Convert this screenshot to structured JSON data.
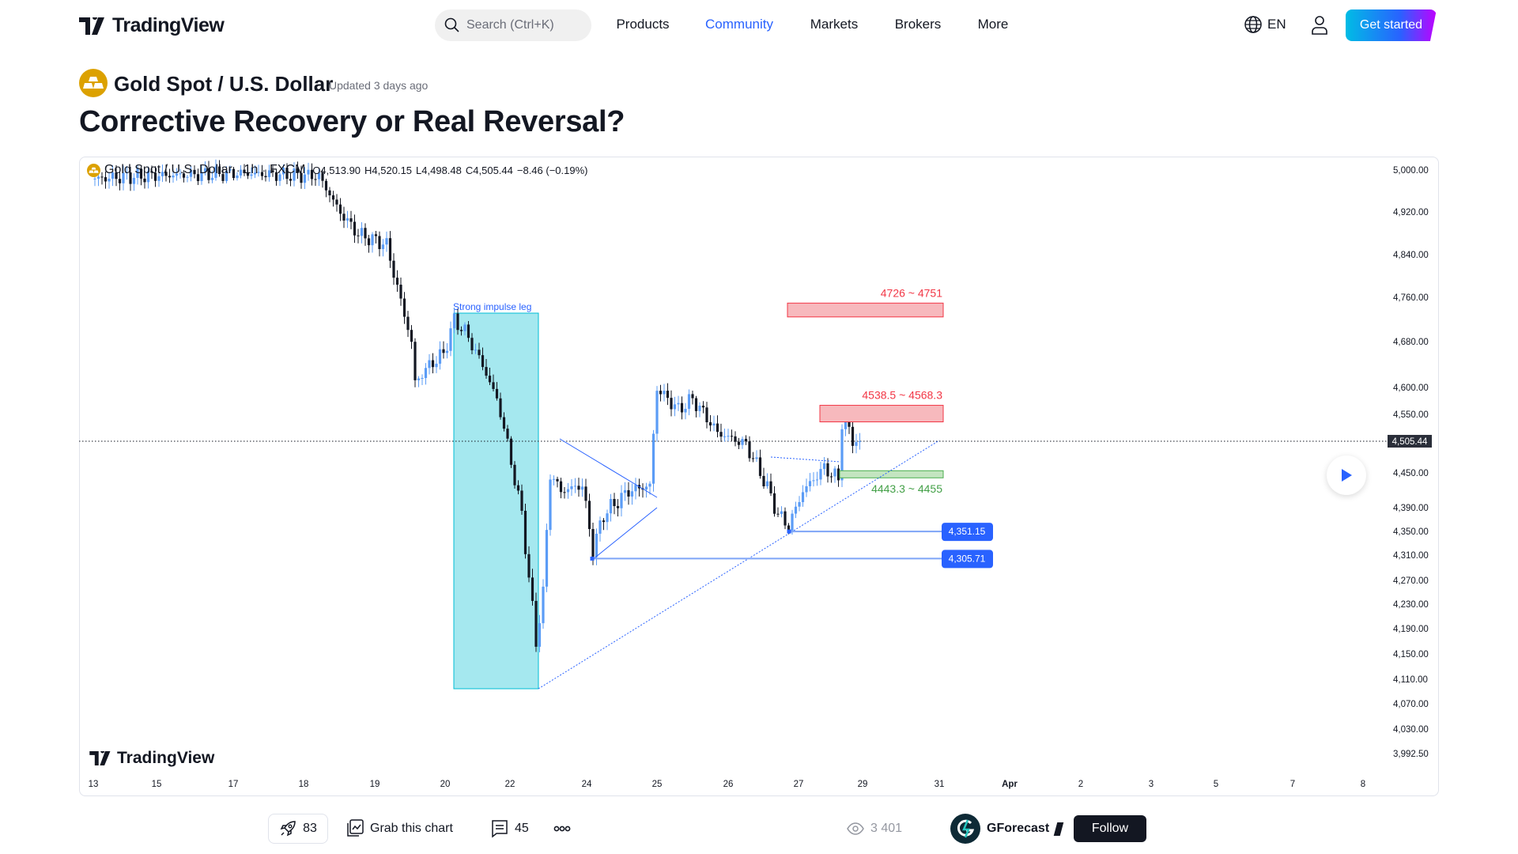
{
  "header": {
    "brand": "TradingView",
    "search_placeholder": "Search (Ctrl+K)",
    "nav": [
      {
        "label": "Products"
      },
      {
        "label": "Community",
        "active": true
      },
      {
        "label": "Markets"
      },
      {
        "label": "Brokers"
      },
      {
        "label": "More"
      }
    ],
    "language": "EN",
    "get_started": "Get started",
    "accent": "#2962ff"
  },
  "idea": {
    "symbol": "Gold Spot / U.S. Dollar",
    "updated": "Updated 3 days ago",
    "title": "Corrective Recovery or Real Reversal?"
  },
  "chart_data": {
    "type": "candlestick",
    "legend": {
      "symbol": "Gold Spot / U.S. Dollar",
      "interval": "1h",
      "exchange": "FXCM",
      "sep": "·",
      "open": "O4,513.90",
      "high": "H4,520.15",
      "low": "L4,498.48",
      "close": "C4,505.44",
      "change": "−8.46 (−0.19%)"
    },
    "y_ticks": [
      "5,000.00",
      "4,920.00",
      "4,840.00",
      "4,760.00",
      "4,680.00",
      "4,600.00",
      "4,550.00",
      "4,450.00",
      "4,390.00",
      "4,350.00",
      "4,310.00",
      "4,270.00",
      "4,230.00",
      "4,190.00",
      "4,150.00",
      "4,110.00",
      "4,070.00",
      "4,030.00",
      "3,992.50"
    ],
    "y_values": [
      5000,
      4920,
      4840,
      4760,
      4680,
      4600,
      4550,
      4450,
      4390,
      4350,
      4310,
      4270,
      4230,
      4190,
      4150,
      4110,
      4070,
      4030,
      3992.5
    ],
    "x_ticks": [
      "13",
      "15",
      "17",
      "18",
      "19",
      "20",
      "22",
      "24",
      "25",
      "26",
      "27",
      "29",
      "31",
      "Apr",
      "2",
      "3",
      "5",
      "7",
      "8"
    ],
    "last_price": {
      "label": "4,505.44",
      "value": 4505.44
    },
    "price_path": [
      [
        0,
        4985
      ],
      [
        14,
        4990
      ],
      [
        41,
        4995
      ],
      [
        63,
        4990
      ],
      [
        69,
        4920
      ],
      [
        74,
        4880
      ],
      [
        82,
        4860
      ],
      [
        85,
        4780
      ],
      [
        89,
        4680
      ],
      [
        90,
        4610
      ],
      [
        94,
        4640
      ],
      [
        98,
        4660
      ],
      [
        101,
        4720
      ],
      [
        104,
        4700
      ],
      [
        109,
        4640
      ],
      [
        113,
        4580
      ],
      [
        116,
        4500
      ],
      [
        120,
        4380
      ],
      [
        124,
        4170
      ],
      [
        126,
        4250
      ],
      [
        128,
        4450
      ],
      [
        131,
        4420
      ],
      [
        137,
        4430
      ],
      [
        140,
        4320
      ],
      [
        143,
        4380
      ],
      [
        150,
        4420
      ],
      [
        156,
        4430
      ],
      [
        158,
        4600
      ],
      [
        164,
        4560
      ],
      [
        168,
        4580
      ],
      [
        175,
        4520
      ],
      [
        183,
        4500
      ],
      [
        188,
        4440
      ],
      [
        192,
        4380
      ],
      [
        195,
        4360
      ],
      [
        199,
        4420
      ],
      [
        205,
        4460
      ],
      [
        209,
        4440
      ],
      [
        210,
        4540
      ],
      [
        213,
        4510
      ],
      [
        215,
        4505
      ]
    ],
    "colors": {
      "up": "#5b9cf6",
      "down": "#131722",
      "impulse": "#a5e8ef",
      "resistance": "#f7b9bd",
      "support": "#c3e5c0",
      "level": "#2962ff"
    },
    "annotations": {
      "impulse_label": "Strong impulse leg",
      "zones": [
        {
          "label": "4726 ~ 4751",
          "low": 4726,
          "high": 4751,
          "kind": "resistance"
        },
        {
          "label": "4538.5 ~ 4568.3",
          "low": 4538.5,
          "high": 4568.3,
          "kind": "resistance"
        },
        {
          "label": "4443.3 ~ 4455",
          "low": 4443.3,
          "high": 4455,
          "kind": "support"
        }
      ],
      "levels": [
        {
          "label": "4,351.15",
          "value": 4351.15
        },
        {
          "label": "4,305.71",
          "value": 4305.71
        }
      ]
    },
    "watermark": "TradingView"
  },
  "footer": {
    "boosts": "83",
    "grab": "Grab this chart",
    "comments": "45",
    "views": "3 401",
    "author": "GForecast",
    "follow": "Follow"
  }
}
